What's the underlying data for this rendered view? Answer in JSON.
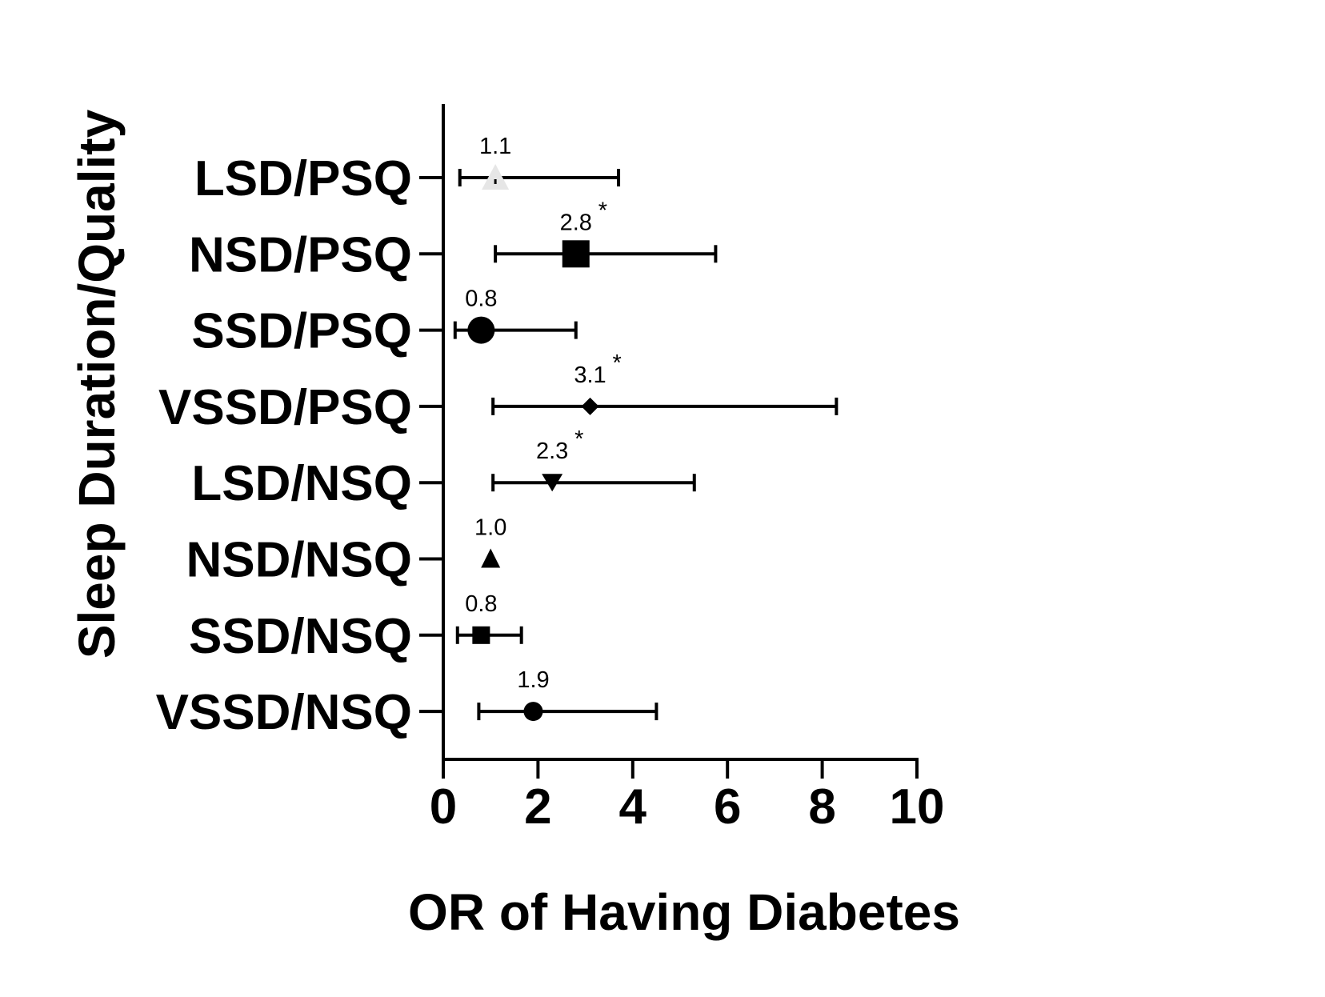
{
  "chart_data": {
    "type": "scatter",
    "subtype": "forest-plot",
    "orientation": "horizontal",
    "xlabel": "OR of Having Diabetes",
    "ylabel": "Sleep Duration/Quality",
    "xlim": [
      0,
      10
    ],
    "xticks": [
      0,
      2,
      4,
      6,
      8,
      10
    ],
    "grid": false,
    "rows": [
      {
        "label": "LSD/PSQ",
        "or": 1.1,
        "or_label": "1.1",
        "ci_low": 0.35,
        "ci_high": 3.7,
        "significant": false,
        "marker": "triangle-up",
        "color": "#e6e6e6"
      },
      {
        "label": "NSD/PSQ",
        "or": 2.8,
        "or_label": "2.8",
        "ci_low": 1.1,
        "ci_high": 5.75,
        "significant": true,
        "marker": "square",
        "color": "#000000"
      },
      {
        "label": "SSD/PSQ",
        "or": 0.8,
        "or_label": "0.8",
        "ci_low": 0.25,
        "ci_high": 2.8,
        "significant": false,
        "marker": "circle",
        "color": "#000000"
      },
      {
        "label": "VSSD/PSQ",
        "or": 3.1,
        "or_label": "3.1",
        "ci_low": 1.05,
        "ci_high": 8.3,
        "significant": true,
        "marker": "diamond",
        "color": "#000000"
      },
      {
        "label": "LSD/NSQ",
        "or": 2.3,
        "or_label": "2.3",
        "ci_low": 1.05,
        "ci_high": 5.3,
        "significant": true,
        "marker": "triangle-down",
        "color": "#000000"
      },
      {
        "label": "NSD/NSQ",
        "or": 1.0,
        "or_label": "1.0",
        "ci_low": null,
        "ci_high": null,
        "significant": false,
        "marker": "triangle-up",
        "color": "#000000"
      },
      {
        "label": "SSD/NSQ",
        "or": 0.8,
        "or_label": "0.8",
        "ci_low": 0.3,
        "ci_high": 1.65,
        "significant": false,
        "marker": "square",
        "color": "#000000"
      },
      {
        "label": "VSSD/NSQ",
        "or": 1.9,
        "or_label": "1.9",
        "ci_low": 0.75,
        "ci_high": 4.5,
        "significant": false,
        "marker": "circle",
        "color": "#000000"
      }
    ],
    "significance_symbol": "*"
  }
}
